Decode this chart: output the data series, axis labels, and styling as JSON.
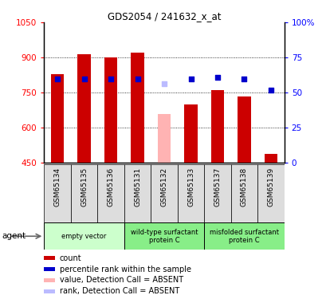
{
  "title": "GDS2054 / 241632_x_at",
  "samples": [
    "GSM65134",
    "GSM65135",
    "GSM65136",
    "GSM65131",
    "GSM65132",
    "GSM65133",
    "GSM65137",
    "GSM65138",
    "GSM65139"
  ],
  "bar_values": [
    830,
    915,
    900,
    920,
    660,
    700,
    760,
    735,
    490
  ],
  "bar_absent": [
    false,
    false,
    false,
    false,
    true,
    false,
    false,
    false,
    false
  ],
  "rank_values": [
    810,
    810,
    808,
    808,
    790,
    808,
    815,
    808,
    760
  ],
  "rank_absent": [
    false,
    false,
    false,
    false,
    true,
    false,
    false,
    false,
    false
  ],
  "ylim_left": [
    450,
    1050
  ],
  "ylim_right": [
    0,
    100
  ],
  "yticks_left": [
    450,
    600,
    750,
    900,
    1050
  ],
  "yticks_right": [
    0,
    25,
    50,
    75,
    100
  ],
  "gridlines": [
    600,
    750,
    900
  ],
  "color_bar_normal": "#cc0000",
  "color_bar_absent": "#ffb3b3",
  "color_rank_normal": "#0000cc",
  "color_rank_absent": "#bbbbff",
  "group_starts": [
    0,
    3,
    6
  ],
  "group_ends": [
    3,
    6,
    9
  ],
  "group_labels": [
    "empty vector",
    "wild-type surfactant\nprotein C",
    "misfolded surfactant\nprotein C"
  ],
  "group_colors": [
    "#ccffcc",
    "#88ee88",
    "#88ee88"
  ],
  "legend_labels": [
    "count",
    "percentile rank within the sample",
    "value, Detection Call = ABSENT",
    "rank, Detection Call = ABSENT"
  ],
  "legend_colors": [
    "#cc0000",
    "#0000cc",
    "#ffb3b3",
    "#bbbbff"
  ],
  "bar_width": 0.5
}
